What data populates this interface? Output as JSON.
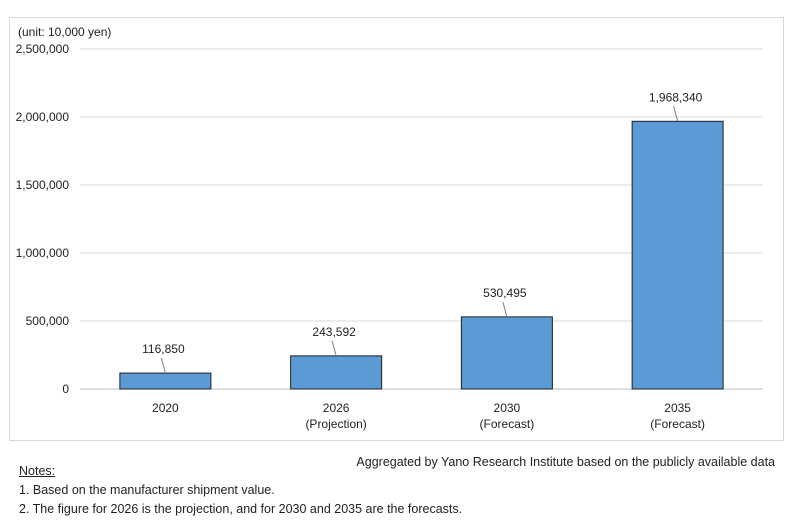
{
  "chart_data": {
    "type": "bar",
    "unit_label": "(unit: 10,000 yen)",
    "categories": [
      {
        "year": "2020",
        "note": ""
      },
      {
        "year": "2026",
        "note": "(Projection)"
      },
      {
        "year": "2030",
        "note": "(Forecast)"
      },
      {
        "year": "2035",
        "note": "(Forecast)"
      }
    ],
    "values": [
      116850,
      243592,
      530495,
      1968340
    ],
    "data_labels": [
      "116,850",
      "243,592",
      "530,495",
      "1,968,340"
    ],
    "ylim": [
      0,
      2500000
    ],
    "yticks": [
      0,
      500000,
      1000000,
      1500000,
      2000000,
      2500000
    ],
    "ytick_labels": [
      "0",
      "500,000",
      "1,000,000",
      "1,500,000",
      "2,000,000",
      "2,500,000"
    ],
    "grid": true,
    "colors": {
      "bar_fill": "#5b9bd5",
      "bar_stroke": "#1f1f1f",
      "grid": "#d9d9d9",
      "axis": "#bfbfbf"
    }
  },
  "source_note": "Aggregated by Yano Research Institute based on the publicly available data",
  "notes": {
    "title": "Notes:",
    "items": [
      "1. Based on the manufacturer shipment value.",
      "2. The figure for 2026 is the projection, and for 2030 and 2035 are the forecasts."
    ]
  }
}
